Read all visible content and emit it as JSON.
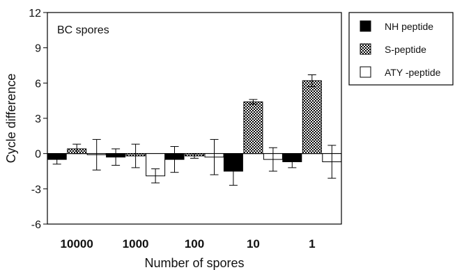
{
  "chart_data": {
    "type": "bar",
    "annotation": "BC spores",
    "xlabel": "Number of spores",
    "ylabel": "Cycle difference",
    "categories": [
      "10000",
      "1000",
      "100",
      "10",
      "1"
    ],
    "ylim": [
      -6,
      12
    ],
    "yticks": [
      -6,
      -3,
      0,
      3,
      6,
      9,
      12
    ],
    "grid": false,
    "legend_position": "outside-top-right",
    "series": [
      {
        "name": "NH peptide",
        "fill": "solid",
        "color": "#000000",
        "values": [
          -0.5,
          -0.3,
          -0.5,
          -1.5,
          -0.7
        ],
        "errors": [
          0.4,
          0.7,
          1.1,
          1.2,
          0.5
        ]
      },
      {
        "name": "S-peptide",
        "fill": "checker",
        "color": "#000000",
        "values": [
          0.4,
          -0.2,
          -0.2,
          4.4,
          6.2
        ],
        "errors": [
          0.4,
          1.0,
          0.2,
          0.2,
          0.5
        ]
      },
      {
        "name": "ATY -peptide",
        "fill": "none",
        "color": "#000000",
        "values": [
          -0.1,
          -1.9,
          -0.3,
          -0.5,
          -0.7
        ],
        "errors": [
          1.3,
          0.6,
          1.5,
          1.0,
          1.4
        ]
      }
    ]
  }
}
